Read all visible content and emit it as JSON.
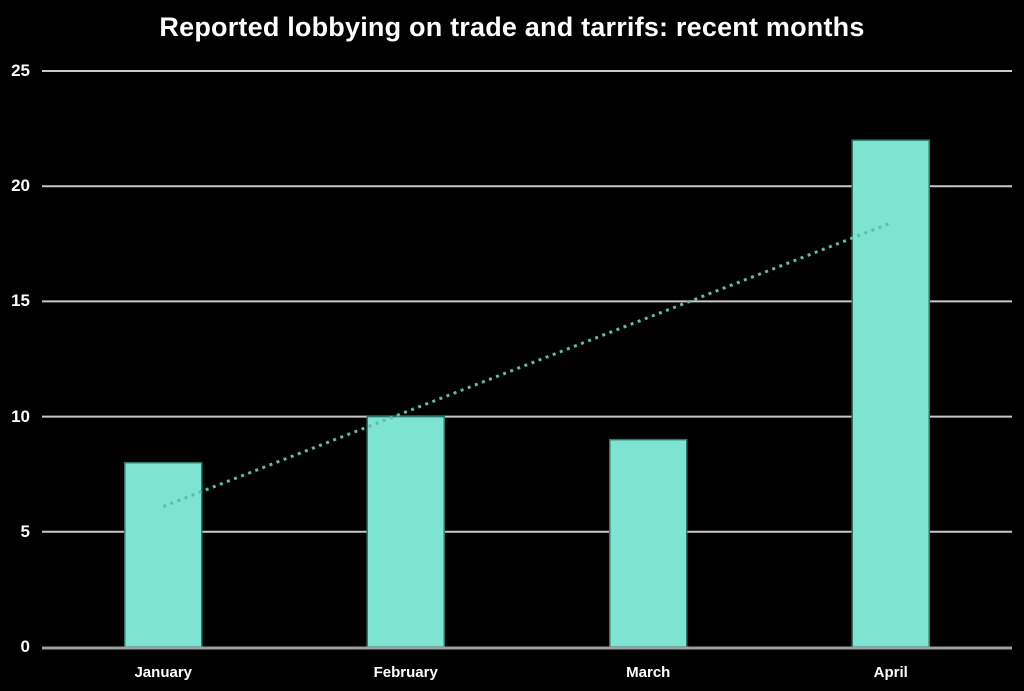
{
  "chart_data": {
    "type": "bar",
    "title": "Reported lobbying on trade and tarrifs: recent months",
    "categories": [
      "January",
      "February",
      "March",
      "April"
    ],
    "values": [
      8,
      10,
      9,
      22
    ],
    "y_ticks": [
      0,
      5,
      10,
      15,
      20,
      25
    ],
    "ylim": [
      0,
      25
    ],
    "xlabel": "",
    "ylabel": "",
    "grid": true,
    "legend": "none",
    "trendline": {
      "style": "dotted",
      "start_value": 6.1,
      "end_value": 18.4
    },
    "colors": {
      "background": "#000000",
      "bar_fill": "#7de4d1",
      "bar_border": "#2f7668",
      "trendline": "#5fbca8",
      "gridline": "#c9c9c9",
      "axis_line": "#9e9e9e",
      "text": "#ffffff"
    }
  }
}
